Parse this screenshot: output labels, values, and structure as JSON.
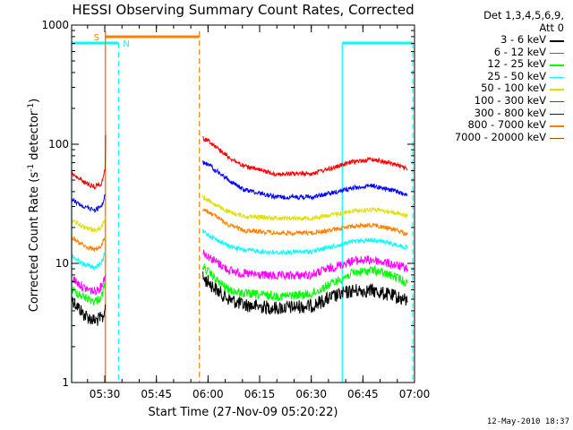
{
  "chart_data": {
    "type": "line",
    "title": "HESSI Observing Summary Count Rates, Corrected",
    "ylabel_main": "Corrected Count Rate (s",
    "ylabel_sup1": "-1",
    "ylabel_mid": " detector",
    "ylabel_sup2": "-1",
    "ylabel_end": ")",
    "xlabel": "Start Time (27-Nov-09 05:20:22)",
    "timestamp": "12-May-2010 18:37",
    "y_scale": "log",
    "ylim": [
      1,
      1000
    ],
    "xlim": [
      "05:20:22",
      "07:00:00"
    ],
    "y_ticks": [
      {
        "value": 1,
        "label": "1"
      },
      {
        "value": 10,
        "label": "10"
      },
      {
        "value": 100,
        "label": "100"
      },
      {
        "value": 1000,
        "label": "1000"
      }
    ],
    "x_ticks": [
      "05:30",
      "05:45",
      "06:00",
      "06:15",
      "06:30",
      "06:45",
      "07:00"
    ],
    "legend_header": [
      "Det 1,3,4,5,6,9,",
      "Att 0"
    ],
    "legend_position": "right",
    "series": [
      {
        "name": "3 - 6 keV",
        "color": "#000000",
        "segments": [
          {
            "t": [
              "05:20:30",
              "05:24",
              "05:27",
              "05:29:30",
              "05:30:10"
            ],
            "y": [
              5.0,
              3.7,
              3.3,
              3.5,
              4.5
            ]
          },
          {
            "t": [
              "05:58:30",
              "06:00",
              "06:03",
              "06:06",
              "06:10",
              "06:20",
              "06:30",
              "06:36",
              "06:42",
              "06:48",
              "06:55",
              "06:58"
            ],
            "y": [
              7.5,
              7.0,
              5.8,
              5.0,
              4.5,
              4.2,
              4.4,
              5.2,
              5.9,
              5.9,
              5.2,
              4.8
            ]
          }
        ]
      },
      {
        "name": "6 - 12 keV",
        "color": "#ff00ff",
        "segments": [
          {
            "t": [
              "05:20:30",
              "05:24",
              "05:27",
              "05:29",
              "05:30:10"
            ],
            "y": [
              7.5,
              6.2,
              5.8,
              6.4,
              8.0
            ]
          },
          {
            "t": [
              "05:58:30",
              "06:00",
              "06:03",
              "06:06",
              "06:10",
              "06:20",
              "06:30",
              "06:36",
              "06:42",
              "06:48",
              "06:55",
              "06:58"
            ],
            "y": [
              12.5,
              11.5,
              10.0,
              8.8,
              8.2,
              7.8,
              8.0,
              9.2,
              10.5,
              10.7,
              9.6,
              9.0
            ]
          }
        ]
      },
      {
        "name": "12 - 25 keV",
        "color": "#00ff00",
        "segments": [
          {
            "t": [
              "05:20:30",
              "05:24",
              "05:27",
              "05:29",
              "05:30:10"
            ],
            "y": [
              6.0,
              5.2,
              4.8,
              5.2,
              6.8
            ]
          },
          {
            "t": [
              "05:58:30",
              "06:00",
              "06:03",
              "06:06",
              "06:10",
              "06:20",
              "06:30",
              "06:36",
              "06:42",
              "06:48",
              "06:55",
              "06:58"
            ],
            "y": [
              9.5,
              8.5,
              7.0,
              6.0,
              5.6,
              5.3,
              5.5,
              6.8,
              8.3,
              8.8,
              7.6,
              6.8
            ]
          }
        ]
      },
      {
        "name": "25 - 50 keV",
        "color": "#00ffff",
        "segments": [
          {
            "t": [
              "05:20:30",
              "05:24",
              "05:27",
              "05:29",
              "05:30:10"
            ],
            "y": [
              11.5,
              9.8,
              9.2,
              10.0,
              12.5
            ]
          },
          {
            "t": [
              "05:58:30",
              "06:00",
              "06:03",
              "06:06",
              "06:10",
              "06:20",
              "06:30",
              "06:36",
              "06:42",
              "06:48",
              "06:55",
              "06:58"
            ],
            "y": [
              18.5,
              17.5,
              15.5,
              14.0,
              13.0,
              12.3,
              12.6,
              13.8,
              15.2,
              15.8,
              14.3,
              13.5
            ]
          }
        ]
      },
      {
        "name": "50 - 100 keV",
        "color": "#e0e000",
        "segments": [
          {
            "t": [
              "05:20:30",
              "05:24",
              "05:27",
              "05:29",
              "05:30:10"
            ],
            "y": [
              23,
              20,
              19,
              20,
              24
            ]
          },
          {
            "t": [
              "05:58:30",
              "06:00",
              "06:03",
              "06:06",
              "06:10",
              "06:20",
              "06:30",
              "06:36",
              "06:42",
              "06:48",
              "06:55",
              "06:58"
            ],
            "y": [
              36,
              34,
              30,
              27,
              25,
              24,
              24,
              25.5,
              27.5,
              28.5,
              26.5,
              25
            ]
          }
        ]
      },
      {
        "name": "100 - 300 keV",
        "color": "#ff0000",
        "segments": [
          {
            "t": [
              "05:20:30",
              "05:24",
              "05:27",
              "05:29",
              "05:30:05",
              "05:30:15"
            ],
            "y": [
              56,
              48,
              44,
              47,
              60,
              120
            ]
          },
          {
            "t": [
              "05:58:30",
              "06:00",
              "06:03",
              "06:06",
              "06:10",
              "06:20",
              "06:30",
              "06:36",
              "06:42",
              "06:48",
              "06:55",
              "06:58"
            ],
            "y": [
              112,
              108,
              92,
              78,
              66,
              56,
              57,
              63,
              71,
              75,
              67,
              61
            ]
          }
        ]
      },
      {
        "name": "300 - 800 keV",
        "color": "#0000ff",
        "segments": [
          {
            "t": [
              "05:20:30",
              "05:24",
              "05:27",
              "05:29",
              "05:30:10"
            ],
            "y": [
              34,
              30,
              28,
              30,
              38
            ]
          },
          {
            "t": [
              "05:58:30",
              "06:00",
              "06:03",
              "06:06",
              "06:10",
              "06:20",
              "06:30",
              "06:36",
              "06:42",
              "06:48",
              "06:55",
              "06:58"
            ],
            "y": [
              70,
              68,
              58,
              50,
              42,
              36,
              36,
              39,
              43,
              45,
              40,
              37
            ]
          }
        ]
      },
      {
        "name": "800 - 7000 keV",
        "color": "#ff8000",
        "segments": [
          {
            "t": [
              "05:20:30",
              "05:24",
              "05:27",
              "05:29",
              "05:30:10"
            ],
            "y": [
              16.5,
              14,
              13,
              14,
              17
            ]
          },
          {
            "t": [
              "05:58:30",
              "06:00",
              "06:03",
              "06:06",
              "06:10",
              "06:20",
              "06:30",
              "06:36",
              "06:42",
              "06:48",
              "06:55",
              "06:58"
            ],
            "y": [
              28,
              27,
              24,
              21,
              19,
              18,
              18,
              19,
              20.5,
              21,
              19,
              17.5
            ]
          }
        ]
      },
      {
        "name": "7000 - 20000 keV",
        "color": "#a05000",
        "segments": []
      }
    ],
    "annotations": {
      "saa": {
        "label": "S",
        "color": "#ff8000",
        "intervals": [
          [
            "05:30:10",
            "05:57:30"
          ]
        ]
      },
      "night": {
        "label": "N",
        "color": "#00ffff",
        "intervals": [
          [
            "05:20:22",
            "05:34:00"
          ],
          [
            "06:39:00",
            "06:59:30"
          ]
        ]
      }
    }
  }
}
